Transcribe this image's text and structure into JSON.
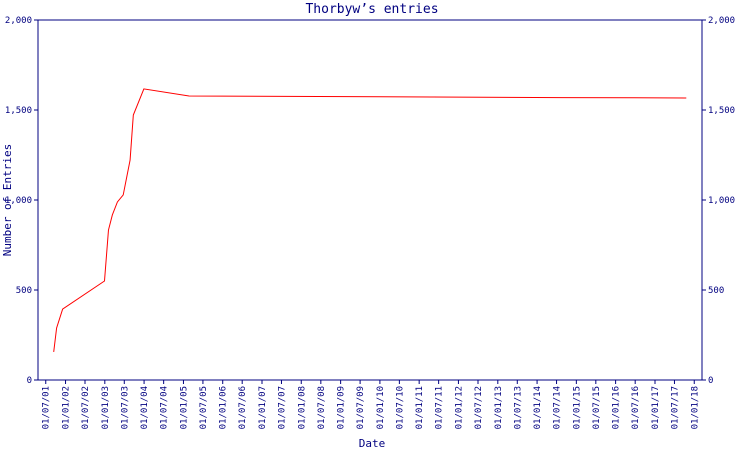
{
  "chart_data": {
    "type": "line",
    "title": "Thorbyw’s entries",
    "xlabel": "Date",
    "ylabel": "Number of Entries",
    "x": [
      "2001-09-13",
      "2001-10-10",
      "2001-12-05",
      "2002-12-29",
      "2003-02-04",
      "2003-03-12",
      "2003-04-28",
      "2003-06-21",
      "2003-08-24",
      "2003-09-23",
      "2003-12-30",
      "2005-02-22",
      "2008-06-10",
      "2014-08-20",
      "2017-10-19"
    ],
    "series": [
      {
        "name": "Entries",
        "color": "#ff0000",
        "values": [
          156,
          289,
          394,
          550,
          833,
          917,
          989,
          1028,
          1222,
          1472,
          1617,
          1578,
          1575,
          1569,
          1567
        ]
      }
    ],
    "xlim": [
      "2001-04-20",
      "2018-03-14"
    ],
    "xticks": [
      {
        "value": "2001-07-01",
        "label": "01/07/01"
      },
      {
        "value": "2002-01-01",
        "label": "01/01/02"
      },
      {
        "value": "2002-07-01",
        "label": "01/07/02"
      },
      {
        "value": "2003-01-01",
        "label": "01/01/03"
      },
      {
        "value": "2003-07-01",
        "label": "01/07/03"
      },
      {
        "value": "2004-01-01",
        "label": "01/01/04"
      },
      {
        "value": "2004-07-01",
        "label": "01/07/04"
      },
      {
        "value": "2005-01-01",
        "label": "01/01/05"
      },
      {
        "value": "2005-07-01",
        "label": "01/07/05"
      },
      {
        "value": "2006-01-01",
        "label": "01/01/06"
      },
      {
        "value": "2006-07-01",
        "label": "01/07/06"
      },
      {
        "value": "2007-01-01",
        "label": "01/01/07"
      },
      {
        "value": "2007-07-01",
        "label": "01/07/07"
      },
      {
        "value": "2008-01-01",
        "label": "01/01/08"
      },
      {
        "value": "2008-07-01",
        "label": "01/07/08"
      },
      {
        "value": "2009-01-01",
        "label": "01/01/09"
      },
      {
        "value": "2009-07-01",
        "label": "01/07/09"
      },
      {
        "value": "2010-01-01",
        "label": "01/01/10"
      },
      {
        "value": "2010-07-01",
        "label": "01/07/10"
      },
      {
        "value": "2011-01-01",
        "label": "01/01/11"
      },
      {
        "value": "2011-07-01",
        "label": "01/07/11"
      },
      {
        "value": "2012-01-01",
        "label": "01/01/12"
      },
      {
        "value": "2012-07-01",
        "label": "01/07/12"
      },
      {
        "value": "2013-01-01",
        "label": "01/01/13"
      },
      {
        "value": "2013-07-01",
        "label": "01/07/13"
      },
      {
        "value": "2014-01-01",
        "label": "01/01/14"
      },
      {
        "value": "2014-07-01",
        "label": "01/07/14"
      },
      {
        "value": "2015-01-01",
        "label": "01/01/15"
      },
      {
        "value": "2015-07-01",
        "label": "01/07/15"
      },
      {
        "value": "2016-01-01",
        "label": "01/01/16"
      },
      {
        "value": "2016-07-01",
        "label": "01/07/16"
      },
      {
        "value": "2017-01-01",
        "label": "01/01/17"
      },
      {
        "value": "2017-07-01",
        "label": "01/07/17"
      },
      {
        "value": "2018-01-01",
        "label": "01/01/18"
      }
    ],
    "ylim": [
      0,
      2000
    ],
    "yticks": [
      {
        "value": 0,
        "label": "0"
      },
      {
        "value": 500,
        "label": "500"
      },
      {
        "value": 1000,
        "label": "1,000"
      },
      {
        "value": 1500,
        "label": "1,500"
      },
      {
        "value": 2000,
        "label": "2,000"
      }
    ],
    "axis_color": "#000080"
  }
}
